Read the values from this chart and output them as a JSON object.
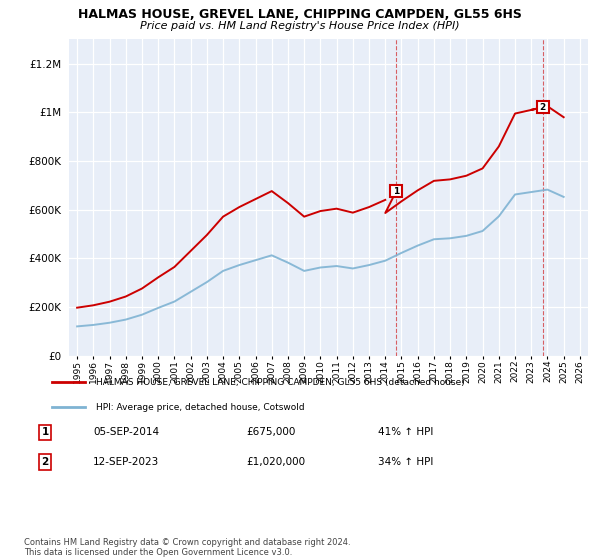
{
  "title": "HALMAS HOUSE, GREVEL LANE, CHIPPING CAMPDEN, GL55 6HS",
  "subtitle": "Price paid vs. HM Land Registry's House Price Index (HPI)",
  "legend_label_red": "HALMAS HOUSE, GREVEL LANE, CHIPPING CAMPDEN, GL55 6HS (detached house)",
  "legend_label_blue": "HPI: Average price, detached house, Cotswold",
  "annotation1_date": "05-SEP-2014",
  "annotation1_price": "£675,000",
  "annotation1_hpi": "41% ↑ HPI",
  "annotation2_date": "12-SEP-2023",
  "annotation2_price": "£1,020,000",
  "annotation2_hpi": "34% ↑ HPI",
  "footnote": "Contains HM Land Registry data © Crown copyright and database right 2024.\nThis data is licensed under the Open Government Licence v3.0.",
  "sale1_year": 2014.67,
  "sale1_value": 675000,
  "sale2_year": 2023.7,
  "sale2_value": 1020000,
  "red_color": "#cc0000",
  "blue_color": "#7fb3d3",
  "background_color": "#e8eef8",
  "plot_bg": "#ffffff",
  "ylim_max": 1300000,
  "xlim_start": 1994.5,
  "xlim_end": 2026.5,
  "years_hpi": [
    1995,
    1996,
    1997,
    1998,
    1999,
    2000,
    2001,
    2002,
    2003,
    2004,
    1995.5,
    1996.5,
    1997.5,
    1998.5,
    1999.5,
    2000.5,
    2001.5,
    2002.5,
    2003.5,
    2004.5,
    2005,
    2006,
    2007,
    2008,
    2009,
    2010,
    2011,
    2012,
    2013,
    2014,
    2015,
    2016,
    2017,
    2018,
    2019,
    2020,
    2021,
    2022,
    2023,
    2024,
    2025
  ],
  "hpi_values": [
    118000,
    122000,
    130000,
    142000,
    162000,
    188000,
    212000,
    250000,
    290000,
    335000,
    120000,
    126000,
    135000,
    148000,
    168000,
    195000,
    220000,
    258000,
    298000,
    340000,
    362000,
    382000,
    402000,
    372000,
    342000,
    357000,
    362000,
    352000,
    367000,
    388000,
    418000,
    448000,
    472000,
    478000,
    488000,
    508000,
    568000,
    658000,
    668000,
    678000,
    648000
  ]
}
